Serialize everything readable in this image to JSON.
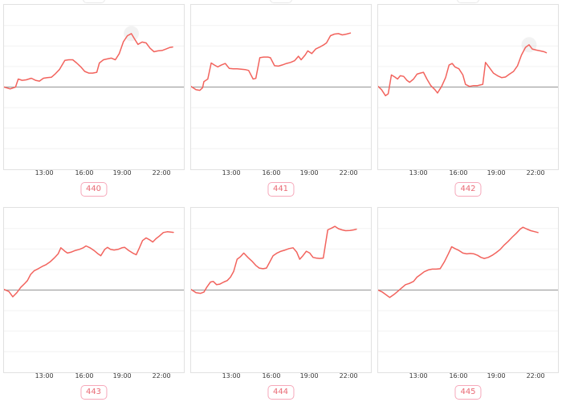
{
  "page": {
    "background": "#ffffff"
  },
  "theme": {
    "line_color": "#f2635d",
    "baseline_color": "#a3a3a3",
    "grid_color": "#f2f2f2",
    "plot_border_color": "#e1e1e1",
    "tick_text_color": "#3b3b3b",
    "badge_text_color": "#e96a75",
    "badge_border_color": "#f6a8ba",
    "badge_bg_color": "#ffffff",
    "halo_color": "rgba(0,0,0,0.05)"
  },
  "chart_data": [
    {
      "id_label": "440",
      "type": "line",
      "x_ticks": [
        {
          "label": "13:00",
          "pos": 0.227
        },
        {
          "label": "16:00",
          "pos": 0.449
        },
        {
          "label": "19:00",
          "pos": 0.658
        },
        {
          "label": "22:00",
          "pos": 0.876
        }
      ],
      "ylim": [
        -4,
        4
      ],
      "baseline": 0,
      "gridline_step": 1,
      "y_axis_labels_visible": false,
      "max_point_halo": true,
      "clipped_box_above": true,
      "points": [
        [
          0,
          0
        ],
        [
          0.034,
          -0.09
        ],
        [
          0.064,
          0
        ],
        [
          0.079,
          0.39
        ],
        [
          0.101,
          0.33
        ],
        [
          0.123,
          0.35
        ],
        [
          0.152,
          0.43
        ],
        [
          0.175,
          0.33
        ],
        [
          0.197,
          0.29
        ],
        [
          0.219,
          0.43
        ],
        [
          0.241,
          0.46
        ],
        [
          0.264,
          0.48
        ],
        [
          0.286,
          0.65
        ],
        [
          0.308,
          0.85
        ],
        [
          0.338,
          1.3
        ],
        [
          0.36,
          1.33
        ],
        [
          0.382,
          1.33
        ],
        [
          0.404,
          1.17
        ],
        [
          0.427,
          0.98
        ],
        [
          0.449,
          0.76
        ],
        [
          0.471,
          0.68
        ],
        [
          0.493,
          0.68
        ],
        [
          0.516,
          0.72
        ],
        [
          0.53,
          1.17
        ],
        [
          0.553,
          1.33
        ],
        [
          0.575,
          1.37
        ],
        [
          0.597,
          1.41
        ],
        [
          0.619,
          1.33
        ],
        [
          0.641,
          1.63
        ],
        [
          0.664,
          2.21
        ],
        [
          0.686,
          2.5
        ],
        [
          0.708,
          2.6
        ],
        [
          0.73,
          2.28
        ],
        [
          0.745,
          2.08
        ],
        [
          0.768,
          2.19
        ],
        [
          0.79,
          2.15
        ],
        [
          0.812,
          1.89
        ],
        [
          0.834,
          1.72
        ],
        [
          0.856,
          1.76
        ],
        [
          0.879,
          1.78
        ],
        [
          0.901,
          1.85
        ],
        [
          0.923,
          1.93
        ],
        [
          0.938,
          1.95
        ]
      ]
    },
    {
      "id_label": "441",
      "type": "line",
      "x_ticks": [
        {
          "label": "13:00",
          "pos": 0.227
        },
        {
          "label": "16:00",
          "pos": 0.449
        },
        {
          "label": "19:00",
          "pos": 0.658
        },
        {
          "label": "22:00",
          "pos": 0.876
        }
      ],
      "ylim": [
        -4,
        4
      ],
      "baseline": 0,
      "gridline_step": 1,
      "y_axis_labels_visible": false,
      "max_point_halo": false,
      "clipped_box_above": true,
      "points": [
        [
          0,
          0.03
        ],
        [
          0.027,
          -0.13
        ],
        [
          0.049,
          -0.16
        ],
        [
          0.064,
          -0.03
        ],
        [
          0.071,
          0.26
        ],
        [
          0.093,
          0.39
        ],
        [
          0.112,
          1.17
        ],
        [
          0.13,
          1.07
        ],
        [
          0.148,
          0.98
        ],
        [
          0.168,
          1.07
        ],
        [
          0.19,
          1.15
        ],
        [
          0.212,
          0.91
        ],
        [
          0.234,
          0.89
        ],
        [
          0.256,
          0.89
        ],
        [
          0.279,
          0.87
        ],
        [
          0.301,
          0.85
        ],
        [
          0.32,
          0.81
        ],
        [
          0.345,
          0.39
        ],
        [
          0.36,
          0.42
        ],
        [
          0.382,
          1.43
        ],
        [
          0.404,
          1.46
        ],
        [
          0.427,
          1.46
        ],
        [
          0.441,
          1.43
        ],
        [
          0.464,
          1.04
        ],
        [
          0.486,
          1.02
        ],
        [
          0.508,
          1.08
        ],
        [
          0.53,
          1.15
        ],
        [
          0.553,
          1.2
        ],
        [
          0.575,
          1.28
        ],
        [
          0.597,
          1.5
        ],
        [
          0.612,
          1.33
        ],
        [
          0.634,
          1.56
        ],
        [
          0.649,
          1.76
        ],
        [
          0.671,
          1.63
        ],
        [
          0.693,
          1.85
        ],
        [
          0.716,
          1.95
        ],
        [
          0.738,
          2.06
        ],
        [
          0.753,
          2.15
        ],
        [
          0.775,
          2.5
        ],
        [
          0.797,
          2.58
        ],
        [
          0.819,
          2.6
        ],
        [
          0.841,
          2.54
        ],
        [
          0.864,
          2.58
        ],
        [
          0.886,
          2.63
        ]
      ]
    },
    {
      "id_label": "442",
      "type": "line",
      "x_ticks": [
        {
          "label": "13:00",
          "pos": 0.227
        },
        {
          "label": "16:00",
          "pos": 0.449
        },
        {
          "label": "19:00",
          "pos": 0.658
        },
        {
          "label": "22:00",
          "pos": 0.876
        }
      ],
      "ylim": [
        -4,
        4
      ],
      "baseline": 0,
      "gridline_step": 1,
      "y_axis_labels_visible": false,
      "max_point_halo": true,
      "clipped_box_above": true,
      "points": [
        [
          0,
          0.03
        ],
        [
          0.019,
          -0.13
        ],
        [
          0.041,
          -0.42
        ],
        [
          0.056,
          -0.33
        ],
        [
          0.074,
          0.59
        ],
        [
          0.093,
          0.49
        ],
        [
          0.108,
          0.39
        ],
        [
          0.123,
          0.55
        ],
        [
          0.142,
          0.52
        ],
        [
          0.16,
          0.33
        ],
        [
          0.175,
          0.23
        ],
        [
          0.197,
          0.39
        ],
        [
          0.216,
          0.63
        ],
        [
          0.234,
          0.68
        ],
        [
          0.252,
          0.72
        ],
        [
          0.271,
          0.39
        ],
        [
          0.293,
          0.07
        ],
        [
          0.316,
          -0.13
        ],
        [
          0.33,
          -0.29
        ],
        [
          0.353,
          0.03
        ],
        [
          0.375,
          0.46
        ],
        [
          0.394,
          1.07
        ],
        [
          0.412,
          1.15
        ],
        [
          0.427,
          0.98
        ],
        [
          0.449,
          0.89
        ],
        [
          0.471,
          0.59
        ],
        [
          0.486,
          0.13
        ],
        [
          0.508,
          0.03
        ],
        [
          0.53,
          0.07
        ],
        [
          0.553,
          0.07
        ],
        [
          0.568,
          0.1
        ],
        [
          0.582,
          0.13
        ],
        [
          0.597,
          1.2
        ],
        [
          0.619,
          0.94
        ],
        [
          0.641,
          0.68
        ],
        [
          0.664,
          0.55
        ],
        [
          0.686,
          0.46
        ],
        [
          0.708,
          0.49
        ],
        [
          0.73,
          0.63
        ],
        [
          0.753,
          0.76
        ],
        [
          0.775,
          1.04
        ],
        [
          0.797,
          1.56
        ],
        [
          0.819,
          1.93
        ],
        [
          0.839,
          2.06
        ],
        [
          0.857,
          1.85
        ],
        [
          0.879,
          1.8
        ],
        [
          0.901,
          1.76
        ],
        [
          0.923,
          1.72
        ],
        [
          0.935,
          1.67
        ]
      ]
    },
    {
      "id_label": "443",
      "type": "line",
      "x_ticks": [
        {
          "label": "13:00",
          "pos": 0.227
        },
        {
          "label": "16:00",
          "pos": 0.449
        },
        {
          "label": "19:00",
          "pos": 0.658
        },
        {
          "label": "22:00",
          "pos": 0.876
        }
      ],
      "ylim": [
        -4,
        4
      ],
      "baseline": 0,
      "gridline_step": 1,
      "y_axis_labels_visible": false,
      "max_point_halo": false,
      "clipped_box_above": false,
      "points": [
        [
          0,
          0.03
        ],
        [
          0.027,
          -0.07
        ],
        [
          0.049,
          -0.33
        ],
        [
          0.071,
          -0.13
        ],
        [
          0.093,
          0.13
        ],
        [
          0.116,
          0.33
        ],
        [
          0.13,
          0.46
        ],
        [
          0.148,
          0.76
        ],
        [
          0.168,
          0.94
        ],
        [
          0.19,
          1.04
        ],
        [
          0.212,
          1.15
        ],
        [
          0.234,
          1.24
        ],
        [
          0.256,
          1.37
        ],
        [
          0.279,
          1.56
        ],
        [
          0.301,
          1.76
        ],
        [
          0.316,
          2.06
        ],
        [
          0.338,
          1.89
        ],
        [
          0.353,
          1.8
        ],
        [
          0.375,
          1.85
        ],
        [
          0.397,
          1.93
        ],
        [
          0.419,
          1.98
        ],
        [
          0.441,
          2.06
        ],
        [
          0.456,
          2.15
        ],
        [
          0.478,
          2.06
        ],
        [
          0.5,
          1.93
        ],
        [
          0.523,
          1.76
        ],
        [
          0.538,
          1.67
        ],
        [
          0.56,
          1.98
        ],
        [
          0.575,
          2.08
        ],
        [
          0.592,
          1.98
        ],
        [
          0.612,
          1.95
        ],
        [
          0.634,
          1.98
        ],
        [
          0.656,
          2.06
        ],
        [
          0.671,
          2.08
        ],
        [
          0.693,
          1.93
        ],
        [
          0.716,
          1.8
        ],
        [
          0.735,
          1.72
        ],
        [
          0.753,
          2.06
        ],
        [
          0.77,
          2.41
        ],
        [
          0.79,
          2.54
        ],
        [
          0.809,
          2.45
        ],
        [
          0.827,
          2.34
        ],
        [
          0.845,
          2.5
        ],
        [
          0.864,
          2.63
        ],
        [
          0.886,
          2.8
        ],
        [
          0.908,
          2.84
        ],
        [
          0.942,
          2.81
        ]
      ]
    },
    {
      "id_label": "444",
      "type": "line",
      "x_ticks": [
        {
          "label": "13:00",
          "pos": 0.227
        },
        {
          "label": "16:00",
          "pos": 0.449
        },
        {
          "label": "19:00",
          "pos": 0.658
        },
        {
          "label": "22:00",
          "pos": 0.876
        }
      ],
      "ylim": [
        -4,
        4
      ],
      "baseline": 0,
      "gridline_step": 1,
      "y_axis_labels_visible": false,
      "max_point_halo": false,
      "clipped_box_above": false,
      "points": [
        [
          0,
          0.03
        ],
        [
          0.027,
          -0.13
        ],
        [
          0.053,
          -0.16
        ],
        [
          0.071,
          -0.1
        ],
        [
          0.089,
          0.16
        ],
        [
          0.108,
          0.39
        ],
        [
          0.123,
          0.42
        ],
        [
          0.142,
          0.26
        ],
        [
          0.16,
          0.29
        ],
        [
          0.182,
          0.39
        ],
        [
          0.201,
          0.46
        ],
        [
          0.219,
          0.63
        ],
        [
          0.237,
          0.91
        ],
        [
          0.256,
          1.5
        ],
        [
          0.275,
          1.63
        ],
        [
          0.293,
          1.8
        ],
        [
          0.316,
          1.59
        ],
        [
          0.338,
          1.41
        ],
        [
          0.36,
          1.2
        ],
        [
          0.379,
          1.07
        ],
        [
          0.4,
          1.04
        ],
        [
          0.419,
          1.07
        ],
        [
          0.438,
          1.37
        ],
        [
          0.456,
          1.67
        ],
        [
          0.478,
          1.8
        ],
        [
          0.5,
          1.89
        ],
        [
          0.523,
          1.95
        ],
        [
          0.545,
          2.02
        ],
        [
          0.567,
          2.06
        ],
        [
          0.587,
          1.85
        ],
        [
          0.604,
          1.5
        ],
        [
          0.622,
          1.67
        ],
        [
          0.641,
          1.89
        ],
        [
          0.66,
          1.8
        ],
        [
          0.678,
          1.59
        ],
        [
          0.696,
          1.56
        ],
        [
          0.715,
          1.54
        ],
        [
          0.735,
          1.56
        ],
        [
          0.76,
          2.93
        ],
        [
          0.782,
          3.02
        ],
        [
          0.8,
          3.1
        ],
        [
          0.819,
          2.99
        ],
        [
          0.839,
          2.93
        ],
        [
          0.859,
          2.89
        ],
        [
          0.883,
          2.9
        ],
        [
          0.904,
          2.93
        ],
        [
          0.919,
          2.96
        ]
      ]
    },
    {
      "id_label": "445",
      "type": "line",
      "x_ticks": [
        {
          "label": "13:00",
          "pos": 0.227
        },
        {
          "label": "16:00",
          "pos": 0.449
        },
        {
          "label": "19:00",
          "pos": 0.658
        },
        {
          "label": "22:00",
          "pos": 0.876
        }
      ],
      "ylim": [
        -4,
        4
      ],
      "baseline": 0,
      "gridline_step": 1,
      "y_axis_labels_visible": false,
      "max_point_halo": false,
      "clipped_box_above": false,
      "points": [
        [
          0,
          0
        ],
        [
          0.024,
          -0.1
        ],
        [
          0.044,
          -0.23
        ],
        [
          0.064,
          -0.36
        ],
        [
          0.086,
          -0.23
        ],
        [
          0.108,
          -0.07
        ],
        [
          0.13,
          0.1
        ],
        [
          0.152,
          0.26
        ],
        [
          0.175,
          0.33
        ],
        [
          0.197,
          0.42
        ],
        [
          0.216,
          0.63
        ],
        [
          0.237,
          0.76
        ],
        [
          0.256,
          0.89
        ],
        [
          0.279,
          0.98
        ],
        [
          0.301,
          1.02
        ],
        [
          0.323,
          1.02
        ],
        [
          0.345,
          1.04
        ],
        [
          0.368,
          1.37
        ],
        [
          0.39,
          1.76
        ],
        [
          0.409,
          2.11
        ],
        [
          0.427,
          2.02
        ],
        [
          0.449,
          1.93
        ],
        [
          0.471,
          1.8
        ],
        [
          0.493,
          1.76
        ],
        [
          0.512,
          1.78
        ],
        [
          0.533,
          1.76
        ],
        [
          0.553,
          1.69
        ],
        [
          0.572,
          1.59
        ],
        [
          0.59,
          1.54
        ],
        [
          0.612,
          1.59
        ],
        [
          0.634,
          1.69
        ],
        [
          0.656,
          1.82
        ],
        [
          0.679,
          1.98
        ],
        [
          0.701,
          2.19
        ],
        [
          0.723,
          2.37
        ],
        [
          0.746,
          2.58
        ],
        [
          0.768,
          2.76
        ],
        [
          0.79,
          2.97
        ],
        [
          0.805,
          3.06
        ],
        [
          0.827,
          2.97
        ],
        [
          0.849,
          2.89
        ],
        [
          0.872,
          2.84
        ],
        [
          0.889,
          2.8
        ]
      ]
    }
  ]
}
